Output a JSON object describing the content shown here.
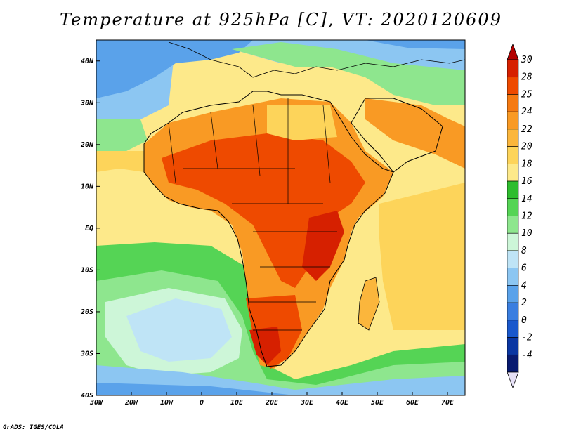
{
  "title": "Temperature at 925hPa [C], VT: 2020120609",
  "footer": "GrADS: IGES/COLA",
  "axes": {
    "lat_labels": [
      "40N",
      "30N",
      "20N",
      "10N",
      "EQ",
      "10S",
      "20S",
      "30S",
      "40S"
    ],
    "lat_values": [
      40,
      30,
      20,
      10,
      0,
      -10,
      -20,
      -30,
      -40
    ],
    "lon_labels": [
      "30W",
      "20W",
      "10W",
      "0",
      "10E",
      "20E",
      "30E",
      "40E",
      "50E",
      "60E",
      "70E"
    ],
    "lon_values": [
      -30,
      -20,
      -10,
      0,
      10,
      20,
      30,
      40,
      50,
      60,
      70
    ],
    "lon_range": [
      -30,
      75
    ],
    "lat_range": [
      -40,
      45
    ]
  },
  "colorbar": {
    "labels": [
      "30",
      "28",
      "25",
      "24",
      "22",
      "20",
      "18",
      "16",
      "14",
      "12",
      "10",
      "8",
      "6",
      "4",
      "2",
      "0",
      "-2",
      "-4"
    ],
    "colors": [
      "#d62000",
      "#ee4a00",
      "#f57a12",
      "#f99a24",
      "#fbb63c",
      "#fdd45a",
      "#fde98a",
      "#2ebd2e",
      "#55d455",
      "#8ee68e",
      "#cdf6d8",
      "#bfe4f6",
      "#8cc6f2",
      "#5aa2ea",
      "#3a7ee0",
      "#1a58cc",
      "#0a36a2",
      "#081a70"
    ],
    "top_cap_color": "#b30000",
    "bottom_cap_color": "#e6e0f6"
  }
}
